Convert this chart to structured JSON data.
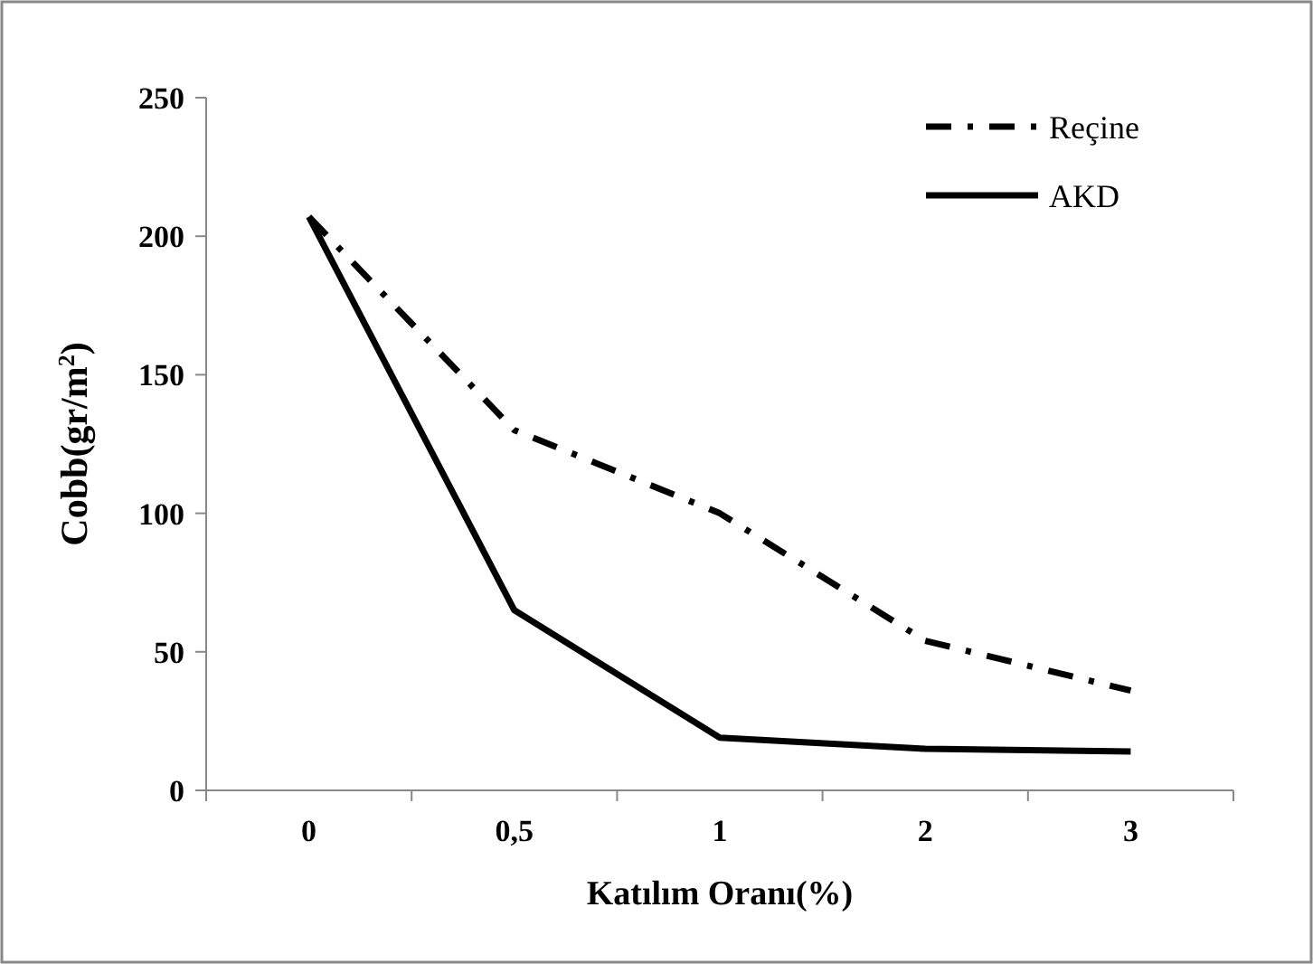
{
  "chart_data": {
    "type": "line",
    "xlabel": "Katılım Oranı(%)",
    "ylabel": "Cobb(gr/m$^{2}$)",
    "categories": [
      "0",
      "0,5",
      "1",
      "2",
      "3"
    ],
    "series": [
      {
        "name": "Reçine",
        "color": "#000000",
        "line_style": "dashdot",
        "values": [
          207,
          130,
          100,
          54,
          36
        ]
      },
      {
        "name": "AKD",
        "color": "#000000",
        "line_style": "solid",
        "values": [
          207,
          65,
          19,
          15,
          14
        ]
      }
    ],
    "ylim": [
      0,
      250
    ],
    "yticks": [
      0,
      50,
      100,
      150,
      200,
      250
    ],
    "grid": false,
    "legend": "top right"
  }
}
